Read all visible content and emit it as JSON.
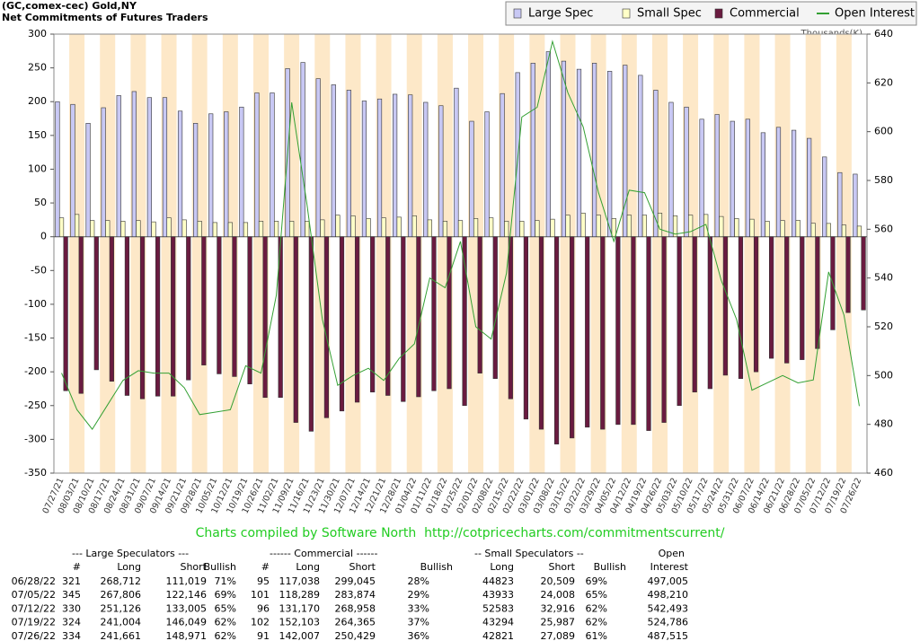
{
  "chart_data": {
    "type": "bar",
    "title": "(GC,comex-cec) Gold,NY",
    "subtitle": "Net Commitments of Futures Traders",
    "y2_label": "Thousands(K)",
    "legend": "top-right",
    "categories": [
      "07/27/21",
      "08/03/21",
      "08/10/21",
      "08/17/21",
      "08/24/21",
      "08/31/21",
      "09/07/21",
      "09/14/21",
      "09/21/21",
      "09/28/21",
      "10/05/21",
      "10/12/21",
      "10/19/21",
      "10/26/21",
      "11/02/21",
      "11/09/21",
      "11/16/21",
      "11/23/21",
      "11/30/21",
      "12/07/21",
      "12/14/21",
      "12/21/21",
      "12/28/21",
      "01/04/22",
      "01/11/22",
      "01/18/22",
      "01/25/22",
      "02/01/22",
      "02/08/22",
      "02/15/22",
      "02/22/22",
      "03/01/22",
      "03/08/22",
      "03/15/22",
      "03/22/22",
      "03/29/22",
      "04/05/22",
      "04/12/22",
      "04/19/22",
      "04/26/22",
      "05/03/22",
      "05/10/22",
      "05/17/22",
      "05/24/22",
      "05/31/22",
      "06/07/22",
      "06/14/22",
      "06/21/22",
      "06/28/22",
      "07/05/22",
      "07/12/22",
      "07/19/22",
      "07/26/22"
    ],
    "series": [
      {
        "name": "Large Spec",
        "color": "#c8c8f4",
        "values": [
          200,
          196,
          168,
          191,
          209,
          215,
          206,
          206,
          186,
          168,
          182,
          185,
          192,
          213,
          213,
          249,
          258,
          234,
          225,
          217,
          201,
          204,
          211,
          210,
          199,
          194,
          220,
          171,
          185,
          212,
          243,
          257,
          274,
          260,
          248,
          257,
          245,
          254,
          239,
          217,
          199,
          192,
          174,
          181,
          171,
          174,
          154,
          162,
          157.7,
          145.7,
          118.1,
          95,
          92.7
        ]
      },
      {
        "name": "Small Spec",
        "color": "#ffffc8",
        "values": [
          28,
          33,
          24,
          24,
          23,
          24,
          22,
          28,
          25,
          23,
          21,
          21,
          21,
          23,
          23,
          23,
          23,
          25,
          32,
          31,
          27,
          28,
          29,
          31,
          25,
          23,
          24,
          27,
          28,
          23,
          23,
          24,
          26,
          32,
          35,
          32,
          27,
          32,
          32,
          35,
          31,
          32,
          33,
          30,
          27,
          26,
          23,
          24,
          24.3,
          19.9,
          19.7,
          17.3,
          15.7
        ]
      },
      {
        "name": "Commercial",
        "color": "#6a1b40",
        "values": [
          -228,
          -232,
          -197,
          -214,
          -235,
          -240,
          -236,
          -236,
          -212,
          -190,
          -203,
          -207,
          -218,
          -238,
          -238,
          -275,
          -288,
          -268,
          -258,
          -245,
          -230,
          -235,
          -244,
          -237,
          -228,
          -225,
          -250,
          -202,
          -210,
          -240,
          -270,
          -285,
          -307,
          -298,
          -282,
          -285,
          -278,
          -278,
          -287,
          -275,
          -250,
          -230,
          -225,
          -205,
          -210,
          -200,
          -180,
          -187,
          -182,
          -165.6,
          -137.8,
          -112.3,
          -108.4
        ]
      },
      {
        "name": "Open Interest",
        "color": "#33a033",
        "type": "line",
        "axis": "y2",
        "values": [
          501,
          486,
          478,
          488,
          498,
          502,
          501,
          501,
          495,
          484,
          485,
          486,
          504,
          501,
          533,
          612,
          570,
          523,
          496,
          500,
          503,
          498,
          507,
          513,
          540,
          536,
          555,
          520,
          515,
          542,
          606,
          610,
          637,
          616,
          602,
          575,
          555,
          576,
          575,
          560,
          558,
          559,
          562,
          539,
          523,
          494,
          497,
          500,
          497,
          498.2,
          542.5,
          524.8,
          487.5
        ]
      }
    ],
    "ylim": [
      -350,
      300
    ],
    "yticks": [
      -350,
      -300,
      -250,
      -200,
      -150,
      -100,
      -50,
      0,
      50,
      100,
      150,
      200,
      250,
      300
    ],
    "y2lim": [
      460,
      640
    ],
    "y2ticks": [
      460,
      480,
      500,
      520,
      540,
      560,
      580,
      600,
      620,
      640
    ]
  },
  "credit": "Charts compiled by Software North  http://cotpricecharts.com/commitmentscurrent/",
  "table": {
    "group_headers": [
      "--- Large Speculators ---",
      "------ Commercial ------",
      "-- Small Speculators --",
      "Open"
    ],
    "columns": [
      "#",
      "Long",
      "Short",
      "Bullish",
      "#",
      "Long",
      "Short",
      "Bullish",
      "Long",
      "Short",
      "Bullish",
      "Interest"
    ],
    "rows": [
      [
        "06/28/22",
        "321",
        "268,712",
        "111,019",
        "71%",
        "95",
        "117,038",
        "299,045",
        "28%",
        "44823",
        "20,509",
        "69%",
        "497,005"
      ],
      [
        "07/05/22",
        "345",
        "267,806",
        "122,146",
        "69%",
        "101",
        "118,289",
        "283,874",
        "29%",
        "43933",
        "24,008",
        "65%",
        "498,210"
      ],
      [
        "07/12/22",
        "330",
        "251,126",
        "133,005",
        "65%",
        "96",
        "131,170",
        "268,958",
        "33%",
        "52583",
        "32,916",
        "62%",
        "542,493"
      ],
      [
        "07/19/22",
        "324",
        "241,004",
        "146,049",
        "62%",
        "102",
        "152,103",
        "264,365",
        "37%",
        "43294",
        "25,987",
        "62%",
        "524,786"
      ],
      [
        "07/26/22",
        "334",
        "241,661",
        "148,971",
        "62%",
        "91",
        "142,007",
        "250,429",
        "36%",
        "42821",
        "27,089",
        "61%",
        "487,515"
      ]
    ]
  }
}
